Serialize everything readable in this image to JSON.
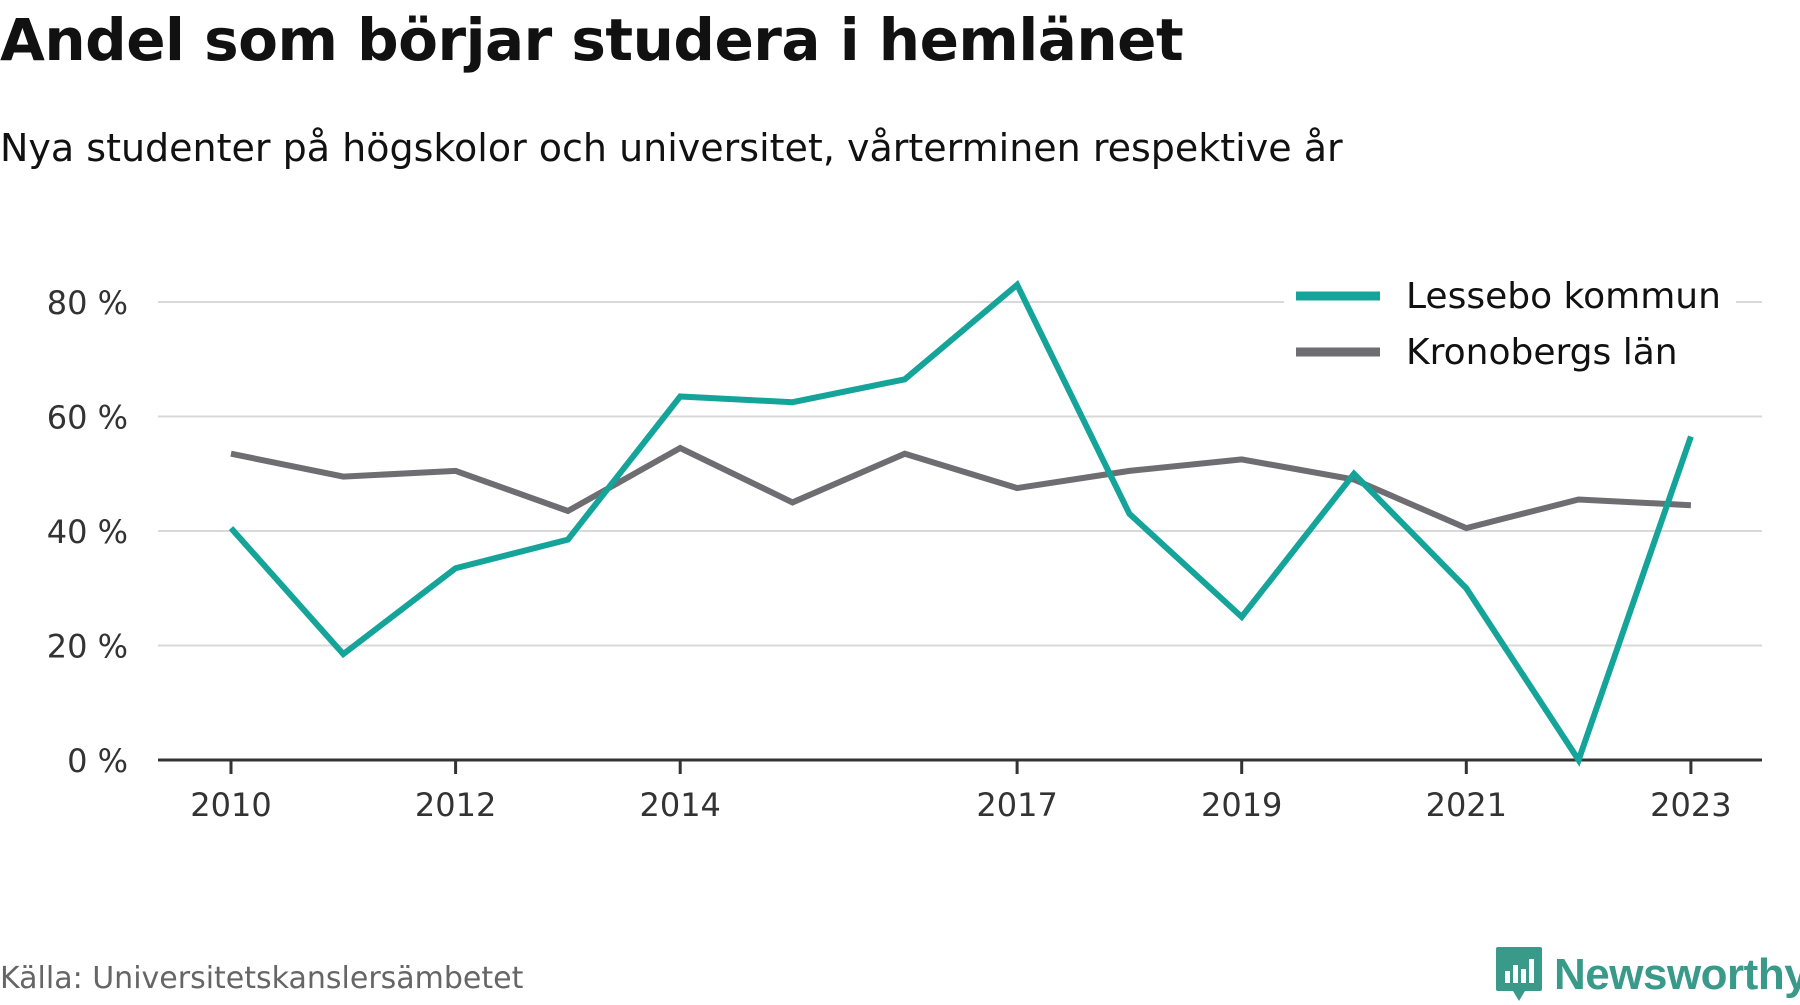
{
  "title": "Andel som börjar studera i hemlänet",
  "subtitle": "Nya studenter på högskolor och universitet, vårterminen respektive år",
  "source": "Källa: Universitetskanslersämbetet",
  "brand": {
    "name": "Newsworthy",
    "icon": "newsworthy-logo-icon",
    "color": "#3a9a8a"
  },
  "chart_data": {
    "type": "line",
    "x": [
      2010,
      2011,
      2012,
      2013,
      2014,
      2015,
      2016,
      2017,
      2018,
      2019,
      2020,
      2021,
      2022,
      2023
    ],
    "x_ticks": [
      2010,
      2012,
      2014,
      2017,
      2019,
      2021,
      2023
    ],
    "x_tick_labels": [
      "2010",
      "2012",
      "2014",
      "2017",
      "2019",
      "2021",
      "2023"
    ],
    "y_ticks": [
      0,
      20,
      40,
      60,
      80
    ],
    "y_tick_labels": [
      "0 %",
      "20 %",
      "40 %",
      "60 %",
      "80 %"
    ],
    "ylim": [
      0,
      85
    ],
    "grid": true,
    "legend_position": "top-right",
    "series": [
      {
        "name": "Lessebo kommun",
        "color": "#14a49a",
        "values": [
          40.5,
          18.5,
          33.5,
          38.5,
          63.5,
          62.5,
          66.5,
          83,
          43,
          25,
          50,
          30,
          0,
          56.5
        ]
      },
      {
        "name": "Kronobergs län",
        "color": "#6e6d72",
        "values": [
          53.5,
          49.5,
          50.5,
          43.5,
          54.5,
          45,
          53.5,
          47.5,
          50.5,
          52.5,
          49,
          40.5,
          45.5,
          44.5
        ]
      }
    ]
  }
}
